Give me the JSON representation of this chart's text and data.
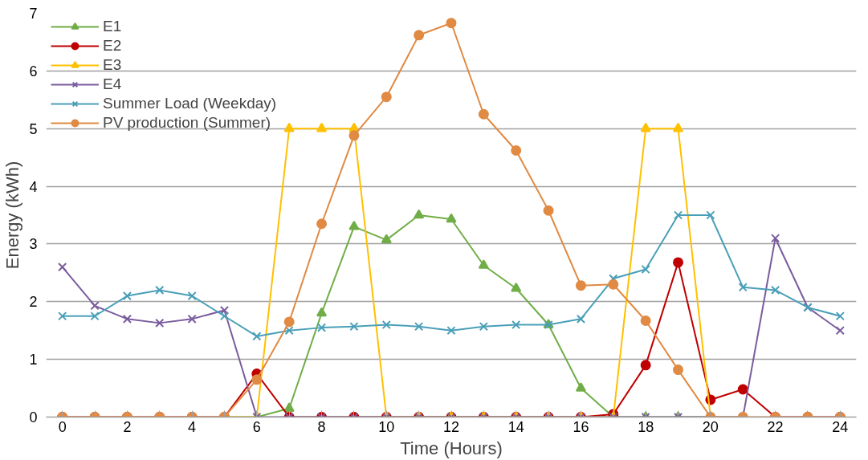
{
  "chart_data": {
    "type": "line",
    "xlabel": "Time (Hours)",
    "ylabel": "Energy (kWh)",
    "x": [
      0,
      1,
      2,
      3,
      4,
      5,
      6,
      7,
      8,
      9,
      10,
      11,
      12,
      13,
      14,
      15,
      16,
      17,
      18,
      19,
      20,
      21,
      22,
      23,
      24
    ],
    "xlim": [
      -0.5,
      24.5
    ],
    "xticks": [
      0,
      {
        "value": 1,
        "label": null
      },
      2,
      {
        "value": 3,
        "label": null
      },
      4,
      {
        "value": 5,
        "label": null
      },
      6,
      {
        "value": 7,
        "label": null
      },
      8,
      {
        "value": 9,
        "label": null
      },
      10,
      {
        "value": 11,
        "label": null
      },
      12,
      {
        "value": 13,
        "label": null
      },
      14,
      {
        "value": 15,
        "label": null
      },
      16,
      {
        "value": 17,
        "label": null
      },
      18,
      {
        "value": 19,
        "label": null
      },
      20,
      {
        "value": 21,
        "label": null
      },
      22,
      {
        "value": 23,
        "label": null
      },
      24
    ],
    "ylim": [
      0,
      7
    ],
    "yticks": [
      0,
      1,
      2,
      3,
      4,
      5,
      6,
      7
    ],
    "grid": "y",
    "legend": "top left",
    "series": [
      {
        "name": "E1",
        "color": "#70ad47",
        "marker": "triangle",
        "values": [
          null,
          null,
          null,
          null,
          null,
          0,
          0,
          0.15,
          1.8,
          3.3,
          3.07,
          3.5,
          3.43,
          2.63,
          2.23,
          1.6,
          0.5,
          0,
          0,
          0,
          0,
          null,
          null,
          null,
          null
        ]
      },
      {
        "name": "E2",
        "color": "#c00000",
        "marker": "circle",
        "values": [
          0,
          0,
          0,
          0,
          0,
          0,
          0.75,
          0,
          0,
          0,
          0,
          0,
          0,
          0,
          0,
          0,
          0,
          0.05,
          0.9,
          2.68,
          0.3,
          0.48,
          0,
          0,
          0
        ]
      },
      {
        "name": "E3",
        "color": "#ffc000",
        "marker": "triangle",
        "values": [
          null,
          null,
          null,
          null,
          null,
          0,
          0,
          5,
          5,
          5,
          0,
          0,
          0,
          0,
          0,
          0,
          0,
          0,
          5,
          5,
          0,
          0,
          null,
          null,
          null
        ]
      },
      {
        "name": "E4",
        "color": "#7a5c9e",
        "marker": "cross",
        "values": [
          2.6,
          1.93,
          1.7,
          1.63,
          1.7,
          1.85,
          0,
          0,
          0,
          0,
          0,
          0,
          0,
          0,
          0,
          0,
          0,
          0,
          0,
          0,
          0,
          0,
          3.1,
          1.9,
          1.5
        ]
      },
      {
        "name": "Summer Load (Weekday)",
        "color": "#4a9fb8",
        "marker": "cross",
        "values": [
          1.75,
          1.75,
          2.1,
          2.2,
          2.1,
          1.75,
          1.4,
          1.5,
          1.55,
          1.57,
          1.6,
          1.57,
          1.5,
          1.57,
          1.6,
          1.6,
          1.7,
          2.4,
          2.56,
          3.5,
          3.5,
          2.25,
          2.2,
          1.9,
          1.75
        ]
      },
      {
        "name": "PV production (Summer)",
        "color": "#e08a43",
        "marker": "circle",
        "values": [
          0,
          0,
          0,
          0,
          0,
          0,
          0.65,
          1.65,
          3.35,
          4.88,
          5.55,
          6.62,
          6.83,
          5.25,
          4.62,
          3.58,
          2.28,
          2.3,
          1.67,
          0.82,
          0,
          0,
          0,
          0,
          0
        ]
      }
    ]
  }
}
